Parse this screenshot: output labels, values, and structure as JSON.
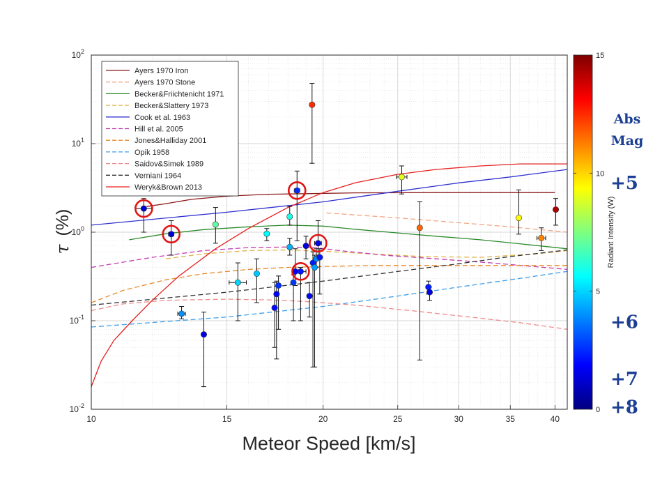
{
  "chart_data": {
    "type": "scatter",
    "xlabel": "Meteor Speed [km/s]",
    "ylabel_symbol": "τ",
    "ylabel_unit": "(%)",
    "xscale": "log",
    "yscale": "log",
    "xlim": [
      10,
      41.5
    ],
    "ylim": [
      0.01,
      100
    ],
    "x_ticks": [
      10,
      15,
      20,
      25,
      30,
      35,
      40
    ],
    "y_ticks": [
      {
        "value": 0.01,
        "base": "10",
        "exp": "-2"
      },
      {
        "value": 0.1,
        "base": "10",
        "exp": "-1"
      },
      {
        "value": 1,
        "base": "10",
        "exp": "0"
      },
      {
        "value": 10,
        "base": "10",
        "exp": "1"
      },
      {
        "value": 100,
        "base": "10",
        "exp": "2"
      }
    ],
    "grid": true,
    "legend_position": "top-left",
    "series": [
      {
        "name": "Ayers 1970 Iron",
        "color": "#8b1a1a",
        "dash": "solid",
        "x": [
          11.8,
          12.5,
          13.5,
          15,
          17,
          19,
          22,
          28,
          35,
          40
        ],
        "y": [
          1.95,
          2.1,
          2.35,
          2.55,
          2.68,
          2.72,
          2.78,
          2.8,
          2.8,
          2.8
        ]
      },
      {
        "name": "Ayers 1970 Stone",
        "color": "#f4a582",
        "dash": "dashed",
        "x": [
          20.2,
          25,
          30,
          35,
          41.5
        ],
        "y": [
          1.65,
          1.45,
          1.28,
          1.15,
          1.0
        ]
      },
      {
        "name": "Becker&Friichtenicht 1971",
        "color": "#2e8b2e",
        "dash": "solid",
        "x": [
          11.2,
          12.5,
          14,
          16,
          18,
          20,
          22,
          25,
          28,
          32,
          36,
          41.5
        ],
        "y": [
          0.82,
          0.96,
          1.07,
          1.15,
          1.2,
          1.17,
          1.08,
          0.98,
          0.9,
          0.82,
          0.74,
          0.65
        ]
      },
      {
        "name": "Becker&Slattery 1973",
        "color": "#e0b54a",
        "dash": "dashed",
        "x": [
          12.5,
          14,
          16,
          18,
          20,
          23,
          27,
          32,
          38,
          41.5
        ],
        "y": [
          0.5,
          0.57,
          0.62,
          0.63,
          0.61,
          0.57,
          0.53,
          0.52,
          0.57,
          0.62
        ]
      },
      {
        "name": "Cook et al. 1963",
        "color": "#3030d0",
        "dash": "solid",
        "x": [
          10,
          15,
          20,
          25,
          30,
          35,
          41.5
        ],
        "y": [
          1.2,
          1.68,
          2.2,
          2.9,
          3.6,
          4.2,
          5.1
        ]
      },
      {
        "name": "Hill et al. 2005",
        "color": "#c03cb0",
        "dash": "dashed",
        "x": [
          10,
          12,
          14,
          16,
          18,
          19.5,
          21,
          24,
          28,
          33,
          41.5
        ],
        "y": [
          0.4,
          0.52,
          0.62,
          0.67,
          0.68,
          0.67,
          0.62,
          0.55,
          0.5,
          0.45,
          0.38
        ]
      },
      {
        "name": "Jones&Halliday 2001",
        "color": "#e8892a",
        "dash": "dashed",
        "x": [
          10,
          11,
          12.5,
          14,
          16,
          18,
          20,
          23,
          27,
          32,
          38,
          41.5
        ],
        "y": [
          0.16,
          0.22,
          0.29,
          0.34,
          0.38,
          0.4,
          0.41,
          0.42,
          0.42,
          0.42,
          0.42,
          0.42
        ]
      },
      {
        "name": "Opik 1958",
        "color": "#3d9ee8",
        "dash": "dashed",
        "x": [
          10,
          15,
          20,
          25,
          30,
          35,
          41.5
        ],
        "y": [
          0.085,
          0.11,
          0.145,
          0.19,
          0.24,
          0.29,
          0.36
        ]
      },
      {
        "name": "Saidov&Simek 1989",
        "color": "#f08a8a",
        "dash": "dashed",
        "x": [
          10,
          11,
          12.5,
          15,
          17,
          19,
          22,
          26,
          31,
          36,
          41.5
        ],
        "y": [
          0.13,
          0.155,
          0.17,
          0.175,
          0.172,
          0.165,
          0.15,
          0.13,
          0.11,
          0.095,
          0.08
        ]
      },
      {
        "name": "Verniani 1964",
        "color": "#333333",
        "dash": "dashed",
        "x": [
          10,
          15,
          20,
          25,
          30,
          35,
          41.5
        ],
        "y": [
          0.15,
          0.21,
          0.28,
          0.36,
          0.44,
          0.53,
          0.63
        ]
      },
      {
        "name": "Weryk&Brown 2013",
        "color": "#e62020",
        "dash": "solid",
        "x": [
          10,
          10.3,
          10.7,
          11.3,
          12,
          13,
          14.5,
          16,
          18,
          20,
          22,
          25,
          28,
          32,
          36,
          41.5
        ],
        "y": [
          0.018,
          0.035,
          0.06,
          0.1,
          0.17,
          0.32,
          0.65,
          1.1,
          1.9,
          2.8,
          3.6,
          4.5,
          5.1,
          5.6,
          5.9,
          5.9
        ]
      }
    ],
    "points": [
      {
        "x": 11.7,
        "y": 1.85,
        "ylo": 1.0,
        "yhi": 2.4,
        "xerr": 0.3,
        "c": 1.2,
        "circled": true
      },
      {
        "x": 12.7,
        "y": 0.95,
        "ylo": 0.55,
        "yhi": 1.35,
        "xerr": 0.1,
        "c": 1.3,
        "circled": true
      },
      {
        "x": 13.1,
        "y": 0.12,
        "ylo": 0.105,
        "yhi": 0.145,
        "xerr": 0.15,
        "c": 4.0
      },
      {
        "x": 14.0,
        "y": 0.07,
        "ylo": 0.018,
        "yhi": 0.125,
        "xerr": 0,
        "c": 1.5
      },
      {
        "x": 14.5,
        "y": 1.22,
        "ylo": 0.75,
        "yhi": 1.9,
        "xerr": 0,
        "c": 7.0
      },
      {
        "x": 15.5,
        "y": 0.27,
        "ylo": 0.1,
        "yhi": 0.45,
        "xerr": 0.4,
        "c": 5.0
      },
      {
        "x": 16.4,
        "y": 0.34,
        "ylo": 0.16,
        "yhi": 0.5,
        "xerr": 0,
        "c": 4.8
      },
      {
        "x": 16.9,
        "y": 0.96,
        "ylo": 0.8,
        "yhi": 1.1,
        "xerr": 0,
        "c": 5.6
      },
      {
        "x": 17.3,
        "y": 0.14,
        "ylo": 0.05,
        "yhi": 0.27,
        "xerr": 0,
        "c": 2.0
      },
      {
        "x": 17.4,
        "y": 0.2,
        "ylo": 0.037,
        "yhi": 0.28,
        "xerr": 0.05,
        "c": 1.8
      },
      {
        "x": 17.5,
        "y": 0.25,
        "ylo": 0.08,
        "yhi": 0.32,
        "xerr": 0,
        "c": 2.6
      },
      {
        "x": 18.1,
        "y": 0.68,
        "ylo": 0.55,
        "yhi": 0.85,
        "xerr": 0,
        "c": 4.5
      },
      {
        "x": 18.1,
        "y": 1.5,
        "ylo": 1.2,
        "yhi": 1.95,
        "xerr": 0,
        "c": 6.0
      },
      {
        "x": 18.3,
        "y": 0.27,
        "ylo": 0.1,
        "yhi": 0.33,
        "xerr": 0,
        "c": 2.7
      },
      {
        "x": 18.4,
        "y": 0.36,
        "ylo": 0.25,
        "yhi": 0.65,
        "xerr": 0,
        "c": 1.6
      },
      {
        "x": 18.5,
        "y": 2.95,
        "ylo": 0.8,
        "yhi": 4.9,
        "xerr": 0.15,
        "c": 2.5,
        "circled": true
      },
      {
        "x": 18.7,
        "y": 0.36,
        "ylo": 0.1,
        "yhi": 0.4,
        "xerr": 0.3,
        "c": 2.2,
        "circled": true
      },
      {
        "x": 19.0,
        "y": 0.7,
        "ylo": 0.5,
        "yhi": 0.9,
        "xerr": 0,
        "c": 1.4
      },
      {
        "x": 19.2,
        "y": 0.19,
        "ylo": 0.11,
        "yhi": 0.27,
        "xerr": 0,
        "c": 2.0
      },
      {
        "x": 19.35,
        "y": 27.5,
        "ylo": 6.0,
        "yhi": 48,
        "xerr": 0,
        "c": 12.5
      },
      {
        "x": 19.4,
        "y": 0.45,
        "ylo": 0.03,
        "yhi": 0.6,
        "xerr": 0,
        "c": 2.3
      },
      {
        "x": 19.5,
        "y": 0.4,
        "ylo": 0.03,
        "yhi": 0.55,
        "xerr": 0,
        "c": 4.2
      },
      {
        "x": 19.6,
        "y": 0.5,
        "ylo": 0.4,
        "yhi": 0.65,
        "xerr": 0,
        "c": 3.9
      },
      {
        "x": 19.7,
        "y": 0.75,
        "ylo": 0.55,
        "yhi": 1.35,
        "xerr": 0.2,
        "c": 1.5,
        "circled": true
      },
      {
        "x": 19.8,
        "y": 0.52,
        "ylo": 0.2,
        "yhi": 0.65,
        "xerr": 0.1,
        "c": 2.2
      },
      {
        "x": 25.3,
        "y": 4.2,
        "ylo": 2.7,
        "yhi": 5.6,
        "xerr": 0.4,
        "c": 9.0
      },
      {
        "x": 26.7,
        "y": 1.12,
        "ylo": 0.036,
        "yhi": 2.2,
        "xerr": 0,
        "c": 11.6
      },
      {
        "x": 27.4,
        "y": 0.24,
        "ylo": 0.2,
        "yhi": 0.28,
        "xerr": 0,
        "c": 2.3
      },
      {
        "x": 27.5,
        "y": 0.21,
        "ylo": 0.17,
        "yhi": 0.24,
        "xerr": 0,
        "c": 1.5
      },
      {
        "x": 35.9,
        "y": 1.45,
        "ylo": 0.95,
        "yhi": 3.0,
        "xerr": 0,
        "c": 9.4
      },
      {
        "x": 38.4,
        "y": 0.86,
        "ylo": 0.62,
        "yhi": 1.12,
        "xerr": 0.5,
        "c": 11.2
      },
      {
        "x": 40.1,
        "y": 1.8,
        "ylo": 1.2,
        "yhi": 2.4,
        "xerr": 0,
        "c": 14.3
      }
    ],
    "colorbar": {
      "label": "Radiant Intensity (W)",
      "min": 0,
      "max": 15,
      "ticks": [
        0,
        5,
        10,
        15
      ],
      "colormap": "jet"
    },
    "annotations": {
      "abs_mag_title_line1": "Abs",
      "abs_mag_title_line2": "Mag",
      "magnitudes": [
        {
          "label": "+5",
          "at_intensity": 9.6
        },
        {
          "label": "+6",
          "at_intensity": 3.7
        },
        {
          "label": "+7",
          "at_intensity": 1.3
        },
        {
          "label": "+8",
          "at_intensity": 0.1
        }
      ]
    }
  }
}
